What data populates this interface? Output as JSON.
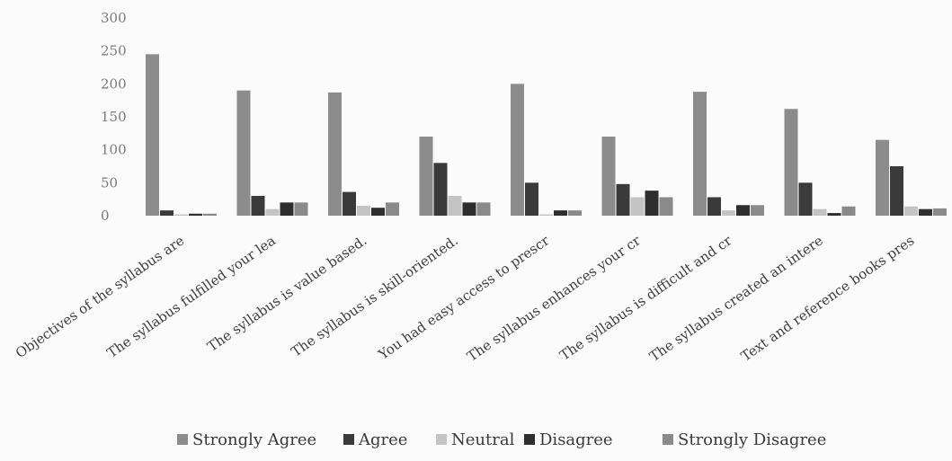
{
  "chart_data": {
    "type": "bar",
    "categories": [
      "Objectives of the syllabus are",
      "The syllabus fulfilled your lea",
      "The syllabus is value based.",
      "The syllabus is skill-oriented.",
      "You had easy access to prescr",
      "The syllabus enhances your cr",
      "The syllabus is difficult and cr",
      "The syllabus created an intere",
      "Text and reference books pres"
    ],
    "series": [
      {
        "name": "Strongly Agree",
        "color": "#8c8c8c",
        "values": [
          245,
          190,
          187,
          120,
          200,
          120,
          188,
          162,
          115
        ]
      },
      {
        "name": "Agree",
        "color": "#3a3a3a",
        "values": [
          8,
          30,
          36,
          80,
          50,
          48,
          28,
          50,
          75
        ]
      },
      {
        "name": "Neutral",
        "color": "#c4c4c4",
        "values": [
          2,
          10,
          15,
          30,
          2,
          28,
          8,
          10,
          14
        ]
      },
      {
        "name": "Disagree",
        "color": "#2e2e2e",
        "values": [
          3,
          20,
          12,
          20,
          8,
          38,
          16,
          4,
          10
        ]
      },
      {
        "name": "Strongly Disagree",
        "color": "#8a8a8a",
        "values": [
          3,
          20,
          20,
          20,
          8,
          28,
          16,
          14,
          11
        ]
      }
    ],
    "yticks": [
      "300",
      "250",
      "200",
      "150",
      "100",
      "50",
      "0"
    ],
    "ylim": [
      0,
      300
    ],
    "legend_position": "bottom",
    "grid": false
  }
}
